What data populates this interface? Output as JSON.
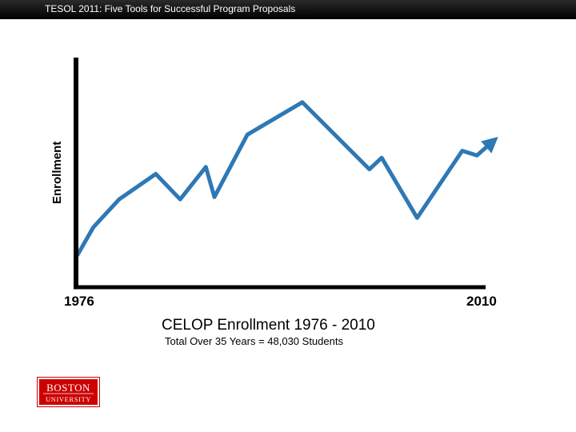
{
  "header": {
    "title": "TESOL 2011: Five Tools for Successful Program Proposals"
  },
  "chart_data": {
    "type": "line",
    "title": "CELOP Enrollment 1976 - 2010",
    "subtitle": "Total Over 35 Years = 48,030 Students",
    "ylabel": "Enrollment",
    "xlabel": "",
    "tick_labels": {
      "start": "1976",
      "end": "2010"
    },
    "xlim": [
      1976,
      2010
    ],
    "ylim": [
      0,
      100
    ],
    "y_ticks_shown": false,
    "grid": false,
    "series": [
      {
        "name": "CELOP Enrollment",
        "color": "#2e78b5",
        "x": [
          1976,
          1977.3,
          1979.4,
          1982.4,
          1984.4,
          1986.5,
          1987.2,
          1989.9,
          1994.4,
          1999.9,
          2000.9,
          2003.8,
          2007.5,
          2008.7,
          2010
        ],
        "values": [
          14,
          26,
          38,
          49,
          38,
          52,
          39,
          66,
          80,
          51,
          56,
          30,
          59,
          57,
          63
        ],
        "end_arrow": true
      }
    ]
  },
  "logo": {
    "line1": "BOSTON",
    "line2": "UNIVERSITY"
  },
  "colors": {
    "accent": "#2e78b5",
    "brand": "#cc0000",
    "bar": "#000000"
  }
}
